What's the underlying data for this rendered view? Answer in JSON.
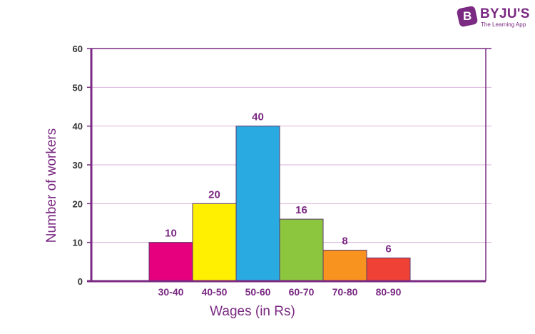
{
  "logo": {
    "name": "BYJU'S",
    "tagline": "The Learning App"
  },
  "colors": {
    "axis": "#7a2a82",
    "grid": "#d9b3d9",
    "text": "#7a2a82"
  },
  "chart_data": {
    "type": "bar",
    "histogram": true,
    "categories": [
      "30-40",
      "40-50",
      "50-60",
      "60-70",
      "70-80",
      "80-90"
    ],
    "values": [
      10,
      20,
      40,
      16,
      8,
      6
    ],
    "data_labels": [
      "10",
      "20",
      "40",
      "16",
      "8",
      "6"
    ],
    "bar_colors": [
      "#e6007e",
      "#ffef00",
      "#29abe2",
      "#8cc63f",
      "#f7931e",
      "#ef4136"
    ],
    "xlabel": "Wages (in Rs)",
    "ylabel": "Number of workers",
    "ylim": [
      0,
      60
    ],
    "yticks": [
      0,
      10,
      20,
      30,
      40,
      50,
      60
    ],
    "grid": true
  }
}
